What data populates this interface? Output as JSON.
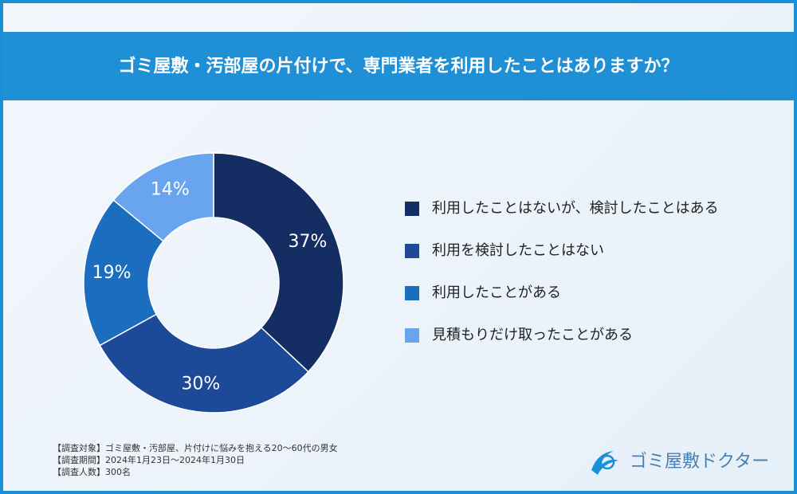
{
  "chart_data": {
    "type": "donut",
    "title": "ゴミ屋敷・汚部屋の片付けで、専門業者を利用したことはありますか？",
    "categories": [
      "利用したことはないが、検討したことはある",
      "利用を検討したことはない",
      "利用したことがある",
      "見積もりだけ取ったことがある"
    ],
    "values": [
      37,
      30,
      19,
      14
    ],
    "value_labels": [
      "37%",
      "30%",
      "19%",
      "14%"
    ],
    "colors": [
      "#142d63",
      "#1c4a98",
      "#1a6dbf",
      "#68a5ee"
    ]
  },
  "notes": [
    "【調査対象】ゴミ屋敷・汚部屋、片付けに悩みを抱える20〜60代の男女",
    "【調査期間】2024年1月23日〜2024年1月30日",
    "【調査人数】300名"
  ],
  "logo": "ゴミ屋敷ドクター"
}
